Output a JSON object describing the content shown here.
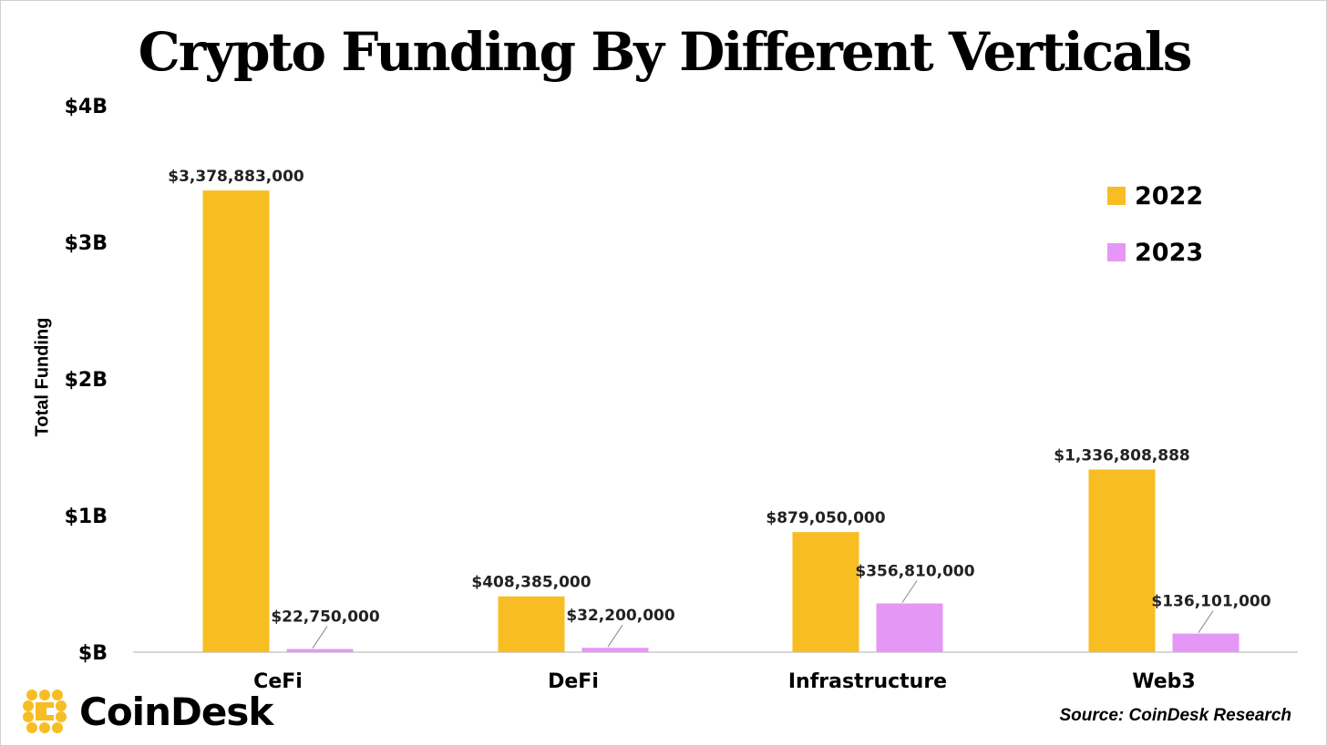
{
  "colors": {
    "series_2022": "#f7bd22",
    "series_2023": "#e597f6",
    "axis": "#cccccc",
    "logo": "#f7bd22"
  },
  "brand": {
    "logo_text": "CoinDesk",
    "source": "Source: CoinDesk Research"
  },
  "chart_data": {
    "type": "bar",
    "title": "Crypto Funding By Different Verticals",
    "xlabel": "",
    "ylabel": "Total Funding",
    "categories": [
      "CeFi",
      "DeFi",
      "Infrastructure",
      "Web3"
    ],
    "series": [
      {
        "name": "2022",
        "values": [
          3378883000,
          408385000,
          879050000,
          1336808888
        ],
        "labels": [
          "$3,378,883,000",
          "$408,385,000",
          "$879,050,000",
          "$1,336,808,888"
        ]
      },
      {
        "name": "2023",
        "values": [
          22750000,
          32200000,
          356810000,
          136101000
        ],
        "labels": [
          "$22,750,000",
          "$32,200,000",
          "$356,810,000",
          "$136,101,000"
        ]
      }
    ],
    "ylim": [
      0,
      4000000000
    ],
    "yticks": [
      0,
      1000000000,
      2000000000,
      3000000000,
      4000000000
    ],
    "ytick_labels": [
      "$B",
      "$1B",
      "$2B",
      "$3B",
      "$4B"
    ],
    "grid": false,
    "legend": "top-right"
  }
}
